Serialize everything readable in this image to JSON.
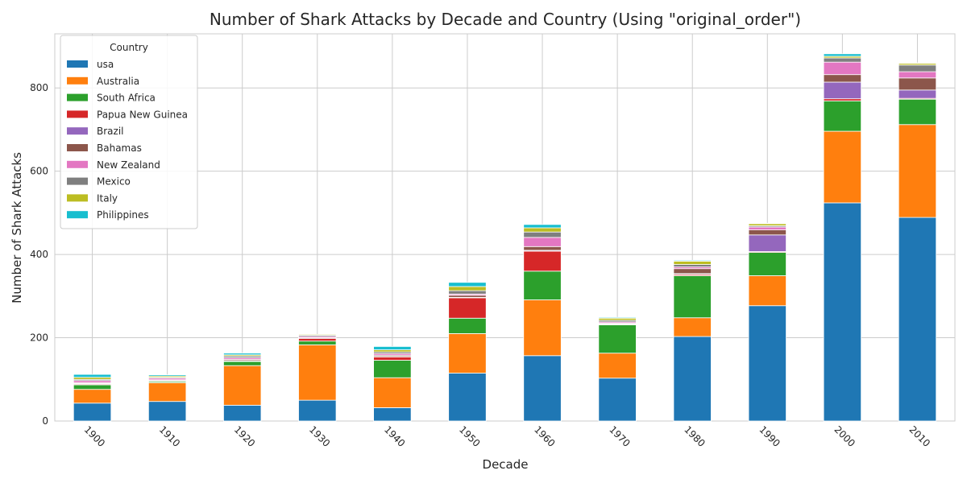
{
  "chart_data": {
    "type": "bar",
    "stacked": true,
    "title": "Number of Shark Attacks by Decade and Country (Using \"original_order\")",
    "xlabel": "Decade",
    "ylabel": "Number of Shark Attacks",
    "ylim": [
      0,
      930
    ],
    "yticks": [
      0,
      200,
      400,
      600,
      800
    ],
    "grid": true,
    "legend_title": "Country",
    "legend_position": "upper-left",
    "categories": [
      "1900",
      "1910",
      "1920",
      "1930",
      "1940",
      "1950",
      "1960",
      "1970",
      "1980",
      "1990",
      "2000",
      "2010"
    ],
    "series": [
      {
        "name": "usa",
        "color": "#1f77b4",
        "values": [
          43,
          47,
          38,
          50,
          32,
          115,
          157,
          103,
          203,
          277,
          524,
          489
        ]
      },
      {
        "name": "Australia",
        "color": "#ff7f0e",
        "values": [
          33,
          45,
          95,
          133,
          72,
          95,
          134,
          60,
          45,
          72,
          172,
          223
        ]
      },
      {
        "name": "South Africa",
        "color": "#2ca02c",
        "values": [
          11,
          3,
          10,
          9,
          42,
          37,
          69,
          68,
          101,
          56,
          73,
          61
        ]
      },
      {
        "name": "Papua New Guinea",
        "color": "#d62728",
        "values": [
          2,
          1,
          1,
          6,
          8,
          49,
          48,
          1,
          3,
          2,
          5,
          2
        ]
      },
      {
        "name": "Brazil",
        "color": "#9467bd",
        "values": [
          1,
          1,
          1,
          0,
          1,
          1,
          2,
          1,
          2,
          40,
          40,
          20
        ]
      },
      {
        "name": "Bahamas",
        "color": "#8c564b",
        "values": [
          2,
          2,
          3,
          2,
          3,
          5,
          9,
          2,
          12,
          12,
          18,
          29
        ]
      },
      {
        "name": "New Zealand",
        "color": "#e377c2",
        "values": [
          5,
          4,
          4,
          3,
          4,
          3,
          22,
          3,
          4,
          7,
          30,
          15
        ]
      },
      {
        "name": "Mexico",
        "color": "#7f7f7f",
        "values": [
          3,
          2,
          4,
          3,
          4,
          8,
          13,
          4,
          6,
          3,
          10,
          16
        ]
      },
      {
        "name": "Italy",
        "color": "#bcbd22",
        "values": [
          5,
          3,
          3,
          2,
          5,
          10,
          10,
          5,
          8,
          5,
          4,
          4
        ]
      },
      {
        "name": "Philippines",
        "color": "#17becf",
        "values": [
          7,
          3,
          4,
          0,
          8,
          10,
          8,
          2,
          2,
          1,
          6,
          1
        ]
      }
    ]
  }
}
